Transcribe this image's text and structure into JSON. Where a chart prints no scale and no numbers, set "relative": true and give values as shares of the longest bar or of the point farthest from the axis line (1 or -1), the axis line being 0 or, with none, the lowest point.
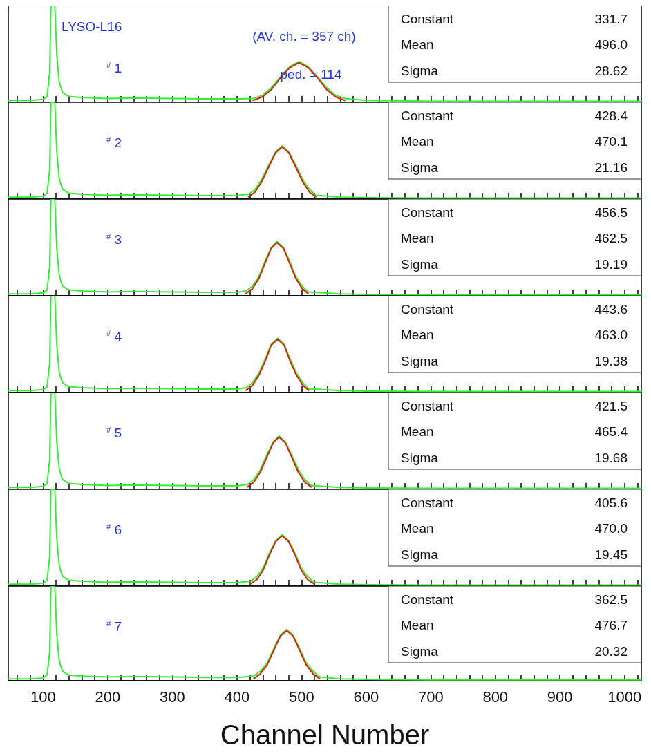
{
  "chart_data": [
    {
      "type": "line",
      "title": "LYSO-L16",
      "relative": true,
      "grid": false,
      "marker": "none",
      "line_style": "solid",
      "tick_labels": false,
      "xlim": [
        46,
        1026
      ],
      "xticks": [
        {
          "value": 60,
          "label": null
        },
        {
          "value": 80,
          "label": null
        },
        100,
        {
          "value": 120,
          "label": null
        },
        {
          "value": 140,
          "label": null
        },
        {
          "value": 160,
          "label": null
        },
        {
          "value": 180,
          "label": null
        },
        200,
        {
          "value": 220,
          "label": null
        },
        {
          "value": 240,
          "label": null
        },
        {
          "value": 260,
          "label": null
        },
        {
          "value": 280,
          "label": null
        },
        300,
        {
          "value": 320,
          "label": null
        },
        {
          "value": 340,
          "label": null
        },
        {
          "value": 360,
          "label": null
        },
        {
          "value": 380,
          "label": null
        },
        400,
        {
          "value": 420,
          "label": null
        },
        {
          "value": 440,
          "label": null
        },
        {
          "value": 460,
          "label": null
        },
        {
          "value": 480,
          "label": null
        },
        500,
        {
          "value": 520,
          "label": null
        },
        {
          "value": 540,
          "label": null
        },
        {
          "value": 560,
          "label": null
        },
        {
          "value": 580,
          "label": null
        },
        600,
        {
          "value": 620,
          "label": null
        },
        {
          "value": 640,
          "label": null
        },
        {
          "value": 660,
          "label": null
        },
        {
          "value": 680,
          "label": null
        },
        700,
        {
          "value": 720,
          "label": null
        },
        {
          "value": 740,
          "label": null
        },
        {
          "value": 760,
          "label": null
        },
        {
          "value": 780,
          "label": null
        },
        800,
        {
          "value": 820,
          "label": null
        },
        {
          "value": 840,
          "label": null
        },
        {
          "value": 860,
          "label": null
        },
        {
          "value": 880,
          "label": null
        },
        900,
        {
          "value": 920,
          "label": null
        },
        {
          "value": 940,
          "label": null
        },
        {
          "value": 960,
          "label": null
        },
        {
          "value": 980,
          "label": null
        },
        1000,
        {
          "value": 1020,
          "label": null
        }
      ],
      "annotations": [
        "$^{#}$ 1",
        "Constant",
        "331.7",
        "Mean",
        "496.0",
        "Sigma",
        "28.62",
        "(AV. ch. = 357 ch)",
        "ped. = 114"
      ],
      "series": [
        {
          "color": "#33ee33",
          "x": [
            46,
            80,
            100,
            106,
            110,
            112,
            116,
            118,
            121,
            125,
            130,
            140,
            160,
            200,
            240,
            300,
            350,
            400,
            425,
            439,
            453,
            467,
            482,
            496,
            510,
            525,
            539,
            553,
            567,
            600,
            700,
            800,
            1026
          ],
          "values": [
            0.02,
            0.02,
            0.03,
            0.06,
            0.3,
            1,
            1,
            1,
            0.5,
            0.2,
            0.1,
            0.06,
            0.05,
            0.04,
            0.045,
            0.04,
            0.035,
            0.035,
            0.04,
            0.07,
            0.15,
            0.26,
            0.37,
            0.42,
            0.37,
            0.26,
            0.15,
            0.07,
            0.04,
            0.02,
            0.01,
            0.01,
            0.01
          ]
        },
        {
          "color": "#dd2200",
          "x": [
            425,
            439,
            453,
            467,
            482,
            496,
            510,
            525,
            539,
            553,
            567
          ],
          "values": [
            0.02,
            0.055,
            0.13,
            0.25,
            0.36,
            0.41,
            0.36,
            0.25,
            0.13,
            0.055,
            0.02
          ]
        }
      ]
    },
    {
      "type": "line",
      "relative": true,
      "grid": false,
      "marker": "none",
      "line_style": "solid",
      "tick_labels": false,
      "xlim": [
        46,
        1026
      ],
      "xticks": [
        {
          "value": 60,
          "label": null
        },
        {
          "value": 80,
          "label": null
        },
        100,
        {
          "value": 120,
          "label": null
        },
        {
          "value": 140,
          "label": null
        },
        {
          "value": 160,
          "label": null
        },
        {
          "value": 180,
          "label": null
        },
        200,
        {
          "value": 220,
          "label": null
        },
        {
          "value": 240,
          "label": null
        },
        {
          "value": 260,
          "label": null
        },
        {
          "value": 280,
          "label": null
        },
        300,
        {
          "value": 320,
          "label": null
        },
        {
          "value": 340,
          "label": null
        },
        {
          "value": 360,
          "label": null
        },
        {
          "value": 380,
          "label": null
        },
        400,
        {
          "value": 420,
          "label": null
        },
        {
          "value": 440,
          "label": null
        },
        {
          "value": 460,
          "label": null
        },
        {
          "value": 480,
          "label": null
        },
        500,
        {
          "value": 520,
          "label": null
        },
        {
          "value": 540,
          "label": null
        },
        {
          "value": 560,
          "label": null
        },
        {
          "value": 580,
          "label": null
        },
        600,
        {
          "value": 620,
          "label": null
        },
        {
          "value": 640,
          "label": null
        },
        {
          "value": 660,
          "label": null
        },
        {
          "value": 680,
          "label": null
        },
        700,
        {
          "value": 720,
          "label": null
        },
        {
          "value": 740,
          "label": null
        },
        {
          "value": 760,
          "label": null
        },
        {
          "value": 780,
          "label": null
        },
        800,
        {
          "value": 820,
          "label": null
        },
        {
          "value": 840,
          "label": null
        },
        {
          "value": 860,
          "label": null
        },
        {
          "value": 880,
          "label": null
        },
        900,
        {
          "value": 920,
          "label": null
        },
        {
          "value": 940,
          "label": null
        },
        {
          "value": 960,
          "label": null
        },
        {
          "value": 980,
          "label": null
        },
        1000,
        {
          "value": 1020,
          "label": null
        }
      ],
      "annotations": [
        "$^{#}$ 2",
        "Constant",
        "428.4",
        "Mean",
        "470.1",
        "Sigma",
        "21.16"
      ],
      "series": [
        {
          "color": "#33ee33",
          "x": [
            46,
            80,
            100,
            106,
            110,
            112,
            116,
            118,
            121,
            125,
            130,
            140,
            160,
            200,
            240,
            300,
            350,
            400,
            418,
            428,
            438,
            449,
            460,
            470,
            480,
            491,
            502,
            512,
            522,
            560,
            600,
            700,
            800,
            1026
          ],
          "values": [
            0.02,
            0.02,
            0.03,
            0.06,
            0.3,
            1,
            1,
            1,
            0.5,
            0.2,
            0.1,
            0.06,
            0.05,
            0.04,
            0.045,
            0.04,
            0.035,
            0.035,
            0.05,
            0.1,
            0.2,
            0.35,
            0.49,
            0.55,
            0.49,
            0.35,
            0.2,
            0.1,
            0.04,
            0.02,
            0.015,
            0.01,
            0.01,
            0.01
          ]
        },
        {
          "color": "#dd2200",
          "x": [
            418,
            428,
            438,
            449,
            460,
            470,
            480,
            491,
            502,
            512,
            522
          ],
          "values": [
            0.024,
            0.073,
            0.175,
            0.33,
            0.48,
            0.54,
            0.48,
            0.33,
            0.175,
            0.073,
            0.024
          ]
        }
      ]
    },
    {
      "type": "line",
      "relative": true,
      "grid": false,
      "marker": "none",
      "line_style": "solid",
      "tick_labels": false,
      "xlim": [
        46,
        1026
      ],
      "xticks": [
        {
          "value": 60,
          "label": null
        },
        {
          "value": 80,
          "label": null
        },
        100,
        {
          "value": 120,
          "label": null
        },
        {
          "value": 140,
          "label": null
        },
        {
          "value": 160,
          "label": null
        },
        {
          "value": 180,
          "label": null
        },
        200,
        {
          "value": 220,
          "label": null
        },
        {
          "value": 240,
          "label": null
        },
        {
          "value": 260,
          "label": null
        },
        {
          "value": 280,
          "label": null
        },
        300,
        {
          "value": 320,
          "label": null
        },
        {
          "value": 340,
          "label": null
        },
        {
          "value": 360,
          "label": null
        },
        {
          "value": 380,
          "label": null
        },
        400,
        {
          "value": 420,
          "label": null
        },
        {
          "value": 440,
          "label": null
        },
        {
          "value": 460,
          "label": null
        },
        {
          "value": 480,
          "label": null
        },
        500,
        {
          "value": 520,
          "label": null
        },
        {
          "value": 540,
          "label": null
        },
        {
          "value": 560,
          "label": null
        },
        {
          "value": 580,
          "label": null
        },
        600,
        {
          "value": 620,
          "label": null
        },
        {
          "value": 640,
          "label": null
        },
        {
          "value": 660,
          "label": null
        },
        {
          "value": 680,
          "label": null
        },
        700,
        {
          "value": 720,
          "label": null
        },
        {
          "value": 740,
          "label": null
        },
        {
          "value": 760,
          "label": null
        },
        {
          "value": 780,
          "label": null
        },
        800,
        {
          "value": 820,
          "label": null
        },
        {
          "value": 840,
          "label": null
        },
        {
          "value": 860,
          "label": null
        },
        {
          "value": 880,
          "label": null
        },
        900,
        {
          "value": 920,
          "label": null
        },
        {
          "value": 940,
          "label": null
        },
        {
          "value": 960,
          "label": null
        },
        {
          "value": 980,
          "label": null
        },
        1000,
        {
          "value": 1020,
          "label": null
        }
      ],
      "annotations": [
        "$^{#}$ 3",
        "Constant",
        "456.5",
        "Mean",
        "462.5",
        "Sigma",
        "19.19"
      ],
      "series": [
        {
          "color": "#33ee33",
          "x": [
            46,
            80,
            100,
            106,
            110,
            112,
            116,
            118,
            121,
            125,
            130,
            140,
            160,
            200,
            240,
            300,
            350,
            400,
            414,
            424,
            434,
            443,
            453,
            462,
            472,
            482,
            491,
            501,
            510,
            560,
            600,
            700,
            800,
            1026
          ],
          "values": [
            0.02,
            0.02,
            0.03,
            0.06,
            0.3,
            1,
            1,
            1,
            0.5,
            0.2,
            0.1,
            0.06,
            0.05,
            0.04,
            0.045,
            0.04,
            0.035,
            0.035,
            0.05,
            0.1,
            0.2,
            0.35,
            0.5,
            0.56,
            0.5,
            0.35,
            0.2,
            0.1,
            0.04,
            0.02,
            0.015,
            0.01,
            0.01,
            0.01
          ]
        },
        {
          "color": "#dd2200",
          "x": [
            414,
            424,
            434,
            443,
            453,
            462,
            472,
            482,
            491,
            501,
            510
          ],
          "values": [
            0.024,
            0.074,
            0.18,
            0.33,
            0.49,
            0.55,
            0.49,
            0.33,
            0.18,
            0.074,
            0.024
          ]
        }
      ]
    },
    {
      "type": "line",
      "relative": true,
      "grid": false,
      "marker": "none",
      "line_style": "solid",
      "tick_labels": false,
      "xlim": [
        46,
        1026
      ],
      "xticks": [
        {
          "value": 60,
          "label": null
        },
        {
          "value": 80,
          "label": null
        },
        100,
        {
          "value": 120,
          "label": null
        },
        {
          "value": 140,
          "label": null
        },
        {
          "value": 160,
          "label": null
        },
        {
          "value": 180,
          "label": null
        },
        200,
        {
          "value": 220,
          "label": null
        },
        {
          "value": 240,
          "label": null
        },
        {
          "value": 260,
          "label": null
        },
        {
          "value": 280,
          "label": null
        },
        300,
        {
          "value": 320,
          "label": null
        },
        {
          "value": 340,
          "label": null
        },
        {
          "value": 360,
          "label": null
        },
        {
          "value": 380,
          "label": null
        },
        400,
        {
          "value": 420,
          "label": null
        },
        {
          "value": 440,
          "label": null
        },
        {
          "value": 460,
          "label": null
        },
        {
          "value": 480,
          "label": null
        },
        500,
        {
          "value": 520,
          "label": null
        },
        {
          "value": 540,
          "label": null
        },
        {
          "value": 560,
          "label": null
        },
        {
          "value": 580,
          "label": null
        },
        600,
        {
          "value": 620,
          "label": null
        },
        {
          "value": 640,
          "label": null
        },
        {
          "value": 660,
          "label": null
        },
        {
          "value": 680,
          "label": null
        },
        700,
        {
          "value": 720,
          "label": null
        },
        {
          "value": 740,
          "label": null
        },
        {
          "value": 760,
          "label": null
        },
        {
          "value": 780,
          "label": null
        },
        800,
        {
          "value": 820,
          "label": null
        },
        {
          "value": 840,
          "label": null
        },
        {
          "value": 860,
          "label": null
        },
        {
          "value": 880,
          "label": null
        },
        900,
        {
          "value": 920,
          "label": null
        },
        {
          "value": 940,
          "label": null
        },
        {
          "value": 960,
          "label": null
        },
        {
          "value": 980,
          "label": null
        },
        1000,
        {
          "value": 1020,
          "label": null
        }
      ],
      "annotations": [
        "$^{#}$ 4",
        "Constant",
        "443.6",
        "Mean",
        "463.0",
        "Sigma",
        "19.38"
      ],
      "series": [
        {
          "color": "#33ee33",
          "x": [
            46,
            80,
            100,
            106,
            110,
            112,
            116,
            118,
            121,
            125,
            130,
            140,
            160,
            200,
            240,
            300,
            350,
            400,
            414,
            424,
            434,
            444,
            453,
            463,
            473,
            482,
            492,
            502,
            511,
            560,
            600,
            700,
            800,
            1026
          ],
          "values": [
            0.02,
            0.02,
            0.03,
            0.06,
            0.3,
            1,
            1,
            1,
            0.5,
            0.2,
            0.1,
            0.06,
            0.05,
            0.04,
            0.045,
            0.04,
            0.035,
            0.035,
            0.05,
            0.1,
            0.2,
            0.35,
            0.5,
            0.56,
            0.5,
            0.35,
            0.2,
            0.1,
            0.04,
            0.02,
            0.015,
            0.01,
            0.01,
            0.01
          ]
        },
        {
          "color": "#dd2200",
          "x": [
            414,
            424,
            434,
            444,
            453,
            463,
            473,
            482,
            492,
            502,
            511
          ],
          "values": [
            0.024,
            0.074,
            0.18,
            0.33,
            0.49,
            0.55,
            0.49,
            0.33,
            0.18,
            0.074,
            0.024
          ]
        }
      ]
    },
    {
      "type": "line",
      "relative": true,
      "grid": false,
      "marker": "none",
      "line_style": "solid",
      "tick_labels": false,
      "xlim": [
        46,
        1026
      ],
      "xticks": [
        {
          "value": 60,
          "label": null
        },
        {
          "value": 80,
          "label": null
        },
        100,
        {
          "value": 120,
          "label": null
        },
        {
          "value": 140,
          "label": null
        },
        {
          "value": 160,
          "label": null
        },
        {
          "value": 180,
          "label": null
        },
        200,
        {
          "value": 220,
          "label": null
        },
        {
          "value": 240,
          "label": null
        },
        {
          "value": 260,
          "label": null
        },
        {
          "value": 280,
          "label": null
        },
        300,
        {
          "value": 320,
          "label": null
        },
        {
          "value": 340,
          "label": null
        },
        {
          "value": 360,
          "label": null
        },
        {
          "value": 380,
          "label": null
        },
        400,
        {
          "value": 420,
          "label": null
        },
        {
          "value": 440,
          "label": null
        },
        {
          "value": 460,
          "label": null
        },
        {
          "value": 480,
          "label": null
        },
        500,
        {
          "value": 520,
          "label": null
        },
        {
          "value": 540,
          "label": null
        },
        {
          "value": 560,
          "label": null
        },
        {
          "value": 580,
          "label": null
        },
        600,
        {
          "value": 620,
          "label": null
        },
        {
          "value": 640,
          "label": null
        },
        {
          "value": 660,
          "label": null
        },
        {
          "value": 680,
          "label": null
        },
        700,
        {
          "value": 720,
          "label": null
        },
        {
          "value": 740,
          "label": null
        },
        {
          "value": 760,
          "label": null
        },
        {
          "value": 780,
          "label": null
        },
        800,
        {
          "value": 820,
          "label": null
        },
        {
          "value": 840,
          "label": null
        },
        {
          "value": 860,
          "label": null
        },
        {
          "value": 880,
          "label": null
        },
        900,
        {
          "value": 920,
          "label": null
        },
        {
          "value": 940,
          "label": null
        },
        {
          "value": 960,
          "label": null
        },
        {
          "value": 980,
          "label": null
        },
        1000,
        {
          "value": 1020,
          "label": null
        }
      ],
      "annotations": [
        "$^{#}$ 5",
        "Constant",
        "421.5",
        "Mean",
        "465.4",
        "Sigma",
        "19.68"
      ],
      "series": [
        {
          "color": "#33ee33",
          "x": [
            46,
            80,
            100,
            106,
            110,
            112,
            116,
            118,
            121,
            125,
            130,
            140,
            160,
            200,
            240,
            300,
            350,
            400,
            416,
            426,
            436,
            446,
            456,
            465,
            475,
            485,
            495,
            505,
            515,
            560,
            600,
            700,
            800,
            1026
          ],
          "values": [
            0.02,
            0.02,
            0.03,
            0.06,
            0.3,
            1,
            1,
            1,
            0.5,
            0.2,
            0.1,
            0.06,
            0.05,
            0.04,
            0.045,
            0.04,
            0.035,
            0.035,
            0.05,
            0.1,
            0.2,
            0.35,
            0.49,
            0.55,
            0.49,
            0.35,
            0.2,
            0.1,
            0.04,
            0.02,
            0.015,
            0.01,
            0.01,
            0.01
          ]
        },
        {
          "color": "#dd2200",
          "x": [
            416,
            426,
            436,
            446,
            456,
            465,
            475,
            485,
            495,
            505,
            515
          ],
          "values": [
            0.024,
            0.073,
            0.175,
            0.33,
            0.48,
            0.54,
            0.48,
            0.33,
            0.175,
            0.073,
            0.024
          ]
        }
      ]
    },
    {
      "type": "line",
      "relative": true,
      "grid": false,
      "marker": "none",
      "line_style": "solid",
      "tick_labels": false,
      "xlim": [
        46,
        1026
      ],
      "xticks": [
        {
          "value": 60,
          "label": null
        },
        {
          "value": 80,
          "label": null
        },
        100,
        {
          "value": 120,
          "label": null
        },
        {
          "value": 140,
          "label": null
        },
        {
          "value": 160,
          "label": null
        },
        {
          "value": 180,
          "label": null
        },
        200,
        {
          "value": 220,
          "label": null
        },
        {
          "value": 240,
          "label": null
        },
        {
          "value": 260,
          "label": null
        },
        {
          "value": 280,
          "label": null
        },
        300,
        {
          "value": 320,
          "label": null
        },
        {
          "value": 340,
          "label": null
        },
        {
          "value": 360,
          "label": null
        },
        {
          "value": 380,
          "label": null
        },
        400,
        {
          "value": 420,
          "label": null
        },
        {
          "value": 440,
          "label": null
        },
        {
          "value": 460,
          "label": null
        },
        {
          "value": 480,
          "label": null
        },
        500,
        {
          "value": 520,
          "label": null
        },
        {
          "value": 540,
          "label": null
        },
        {
          "value": 560,
          "label": null
        },
        {
          "value": 580,
          "label": null
        },
        600,
        {
          "value": 620,
          "label": null
        },
        {
          "value": 640,
          "label": null
        },
        {
          "value": 660,
          "label": null
        },
        {
          "value": 680,
          "label": null
        },
        700,
        {
          "value": 720,
          "label": null
        },
        {
          "value": 740,
          "label": null
        },
        {
          "value": 760,
          "label": null
        },
        {
          "value": 780,
          "label": null
        },
        800,
        {
          "value": 820,
          "label": null
        },
        {
          "value": 840,
          "label": null
        },
        {
          "value": 860,
          "label": null
        },
        {
          "value": 880,
          "label": null
        },
        900,
        {
          "value": 920,
          "label": null
        },
        {
          "value": 940,
          "label": null
        },
        {
          "value": 960,
          "label": null
        },
        {
          "value": 980,
          "label": null
        },
        1000,
        {
          "value": 1020,
          "label": null
        }
      ],
      "annotations": [
        "$^{#}$ 6",
        "Constant",
        "405.6",
        "Mean",
        "470.0",
        "Sigma",
        "19.45"
      ],
      "series": [
        {
          "color": "#33ee33",
          "x": [
            46,
            80,
            100,
            106,
            110,
            112,
            116,
            118,
            121,
            125,
            130,
            140,
            160,
            200,
            240,
            300,
            350,
            400,
            421,
            431,
            441,
            450,
            460,
            470,
            480,
            490,
            499,
            509,
            519,
            560,
            600,
            700,
            800,
            1026
          ],
          "values": [
            0.02,
            0.02,
            0.03,
            0.06,
            0.3,
            1,
            1,
            1,
            0.5,
            0.2,
            0.1,
            0.06,
            0.05,
            0.04,
            0.045,
            0.04,
            0.035,
            0.035,
            0.05,
            0.1,
            0.19,
            0.34,
            0.47,
            0.53,
            0.47,
            0.34,
            0.19,
            0.1,
            0.04,
            0.02,
            0.015,
            0.01,
            0.01,
            0.01
          ]
        },
        {
          "color": "#dd2200",
          "x": [
            421,
            431,
            441,
            450,
            460,
            470,
            480,
            490,
            499,
            509,
            519
          ],
          "values": [
            0.023,
            0.07,
            0.17,
            0.32,
            0.46,
            0.52,
            0.46,
            0.32,
            0.17,
            0.07,
            0.023
          ]
        }
      ]
    },
    {
      "type": "line",
      "xlabel": "Channel Number",
      "relative": true,
      "grid": false,
      "marker": "none",
      "line_style": "solid",
      "tick_labels": "x",
      "xlim": [
        46,
        1026
      ],
      "xticks": [
        {
          "value": 60,
          "label": null
        },
        {
          "value": 80,
          "label": null
        },
        100,
        {
          "value": 120,
          "label": null
        },
        {
          "value": 140,
          "label": null
        },
        {
          "value": 160,
          "label": null
        },
        {
          "value": 180,
          "label": null
        },
        200,
        {
          "value": 220,
          "label": null
        },
        {
          "value": 240,
          "label": null
        },
        {
          "value": 260,
          "label": null
        },
        {
          "value": 280,
          "label": null
        },
        300,
        {
          "value": 320,
          "label": null
        },
        {
          "value": 340,
          "label": null
        },
        {
          "value": 360,
          "label": null
        },
        {
          "value": 380,
          "label": null
        },
        400,
        {
          "value": 420,
          "label": null
        },
        {
          "value": 440,
          "label": null
        },
        {
          "value": 460,
          "label": null
        },
        {
          "value": 480,
          "label": null
        },
        500,
        {
          "value": 520,
          "label": null
        },
        {
          "value": 540,
          "label": null
        },
        {
          "value": 560,
          "label": null
        },
        {
          "value": 580,
          "label": null
        },
        600,
        {
          "value": 620,
          "label": null
        },
        {
          "value": 640,
          "label": null
        },
        {
          "value": 660,
          "label": null
        },
        {
          "value": 680,
          "label": null
        },
        700,
        {
          "value": 720,
          "label": null
        },
        {
          "value": 740,
          "label": null
        },
        {
          "value": 760,
          "label": null
        },
        {
          "value": 780,
          "label": null
        },
        800,
        {
          "value": 820,
          "label": null
        },
        {
          "value": 840,
          "label": null
        },
        {
          "value": 860,
          "label": null
        },
        {
          "value": 880,
          "label": null
        },
        900,
        {
          "value": 920,
          "label": null
        },
        {
          "value": 940,
          "label": null
        },
        {
          "value": 960,
          "label": null
        },
        {
          "value": 980,
          "label": null
        },
        1000,
        {
          "value": 1020,
          "label": null
        }
      ],
      "annotations": [
        "$^{#}$ 7",
        "Constant",
        "362.5",
        "Mean",
        "476.7",
        "Sigma",
        "20.32"
      ],
      "series": [
        {
          "color": "#33ee33",
          "x": [
            46,
            80,
            100,
            106,
            110,
            112,
            116,
            118,
            121,
            125,
            130,
            140,
            160,
            200,
            240,
            300,
            350,
            400,
            426,
            436,
            447,
            457,
            467,
            477,
            487,
            497,
            507,
            518,
            528,
            560,
            600,
            700,
            800,
            1026
          ],
          "values": [
            0.02,
            0.02,
            0.03,
            0.06,
            0.3,
            1,
            1,
            1,
            0.5,
            0.2,
            0.1,
            0.06,
            0.05,
            0.04,
            0.045,
            0.04,
            0.035,
            0.035,
            0.05,
            0.1,
            0.19,
            0.34,
            0.48,
            0.54,
            0.48,
            0.34,
            0.19,
            0.1,
            0.04,
            0.02,
            0.015,
            0.01,
            0.01,
            0.01
          ]
        },
        {
          "color": "#dd2200",
          "x": [
            426,
            436,
            447,
            457,
            467,
            477,
            487,
            497,
            507,
            518,
            528
          ],
          "values": [
            0.023,
            0.072,
            0.17,
            0.32,
            0.47,
            0.53,
            0.47,
            0.32,
            0.17,
            0.072,
            0.023
          ]
        }
      ]
    }
  ]
}
